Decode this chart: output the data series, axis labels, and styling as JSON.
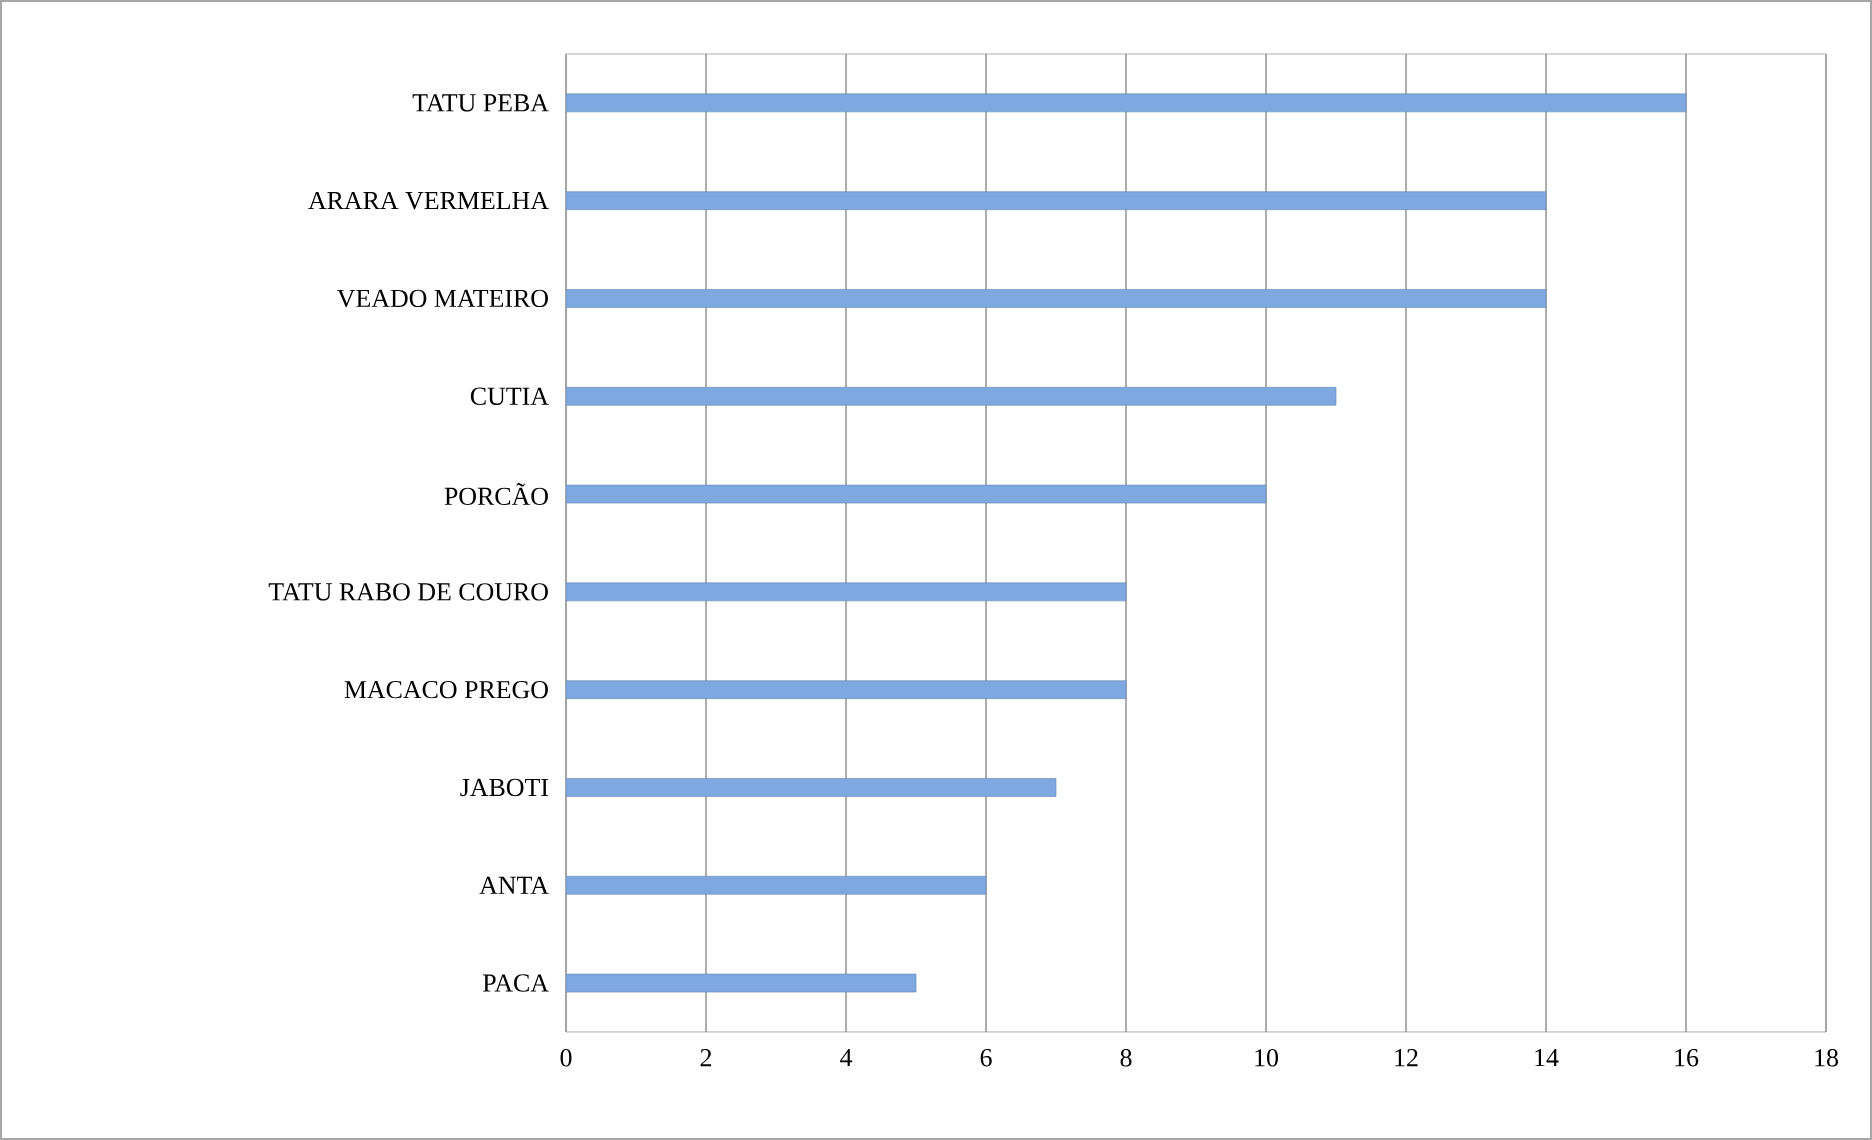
{
  "chart_data": {
    "type": "bar",
    "orientation": "horizontal",
    "categories": [
      "TATU PEBA",
      "ARARA VERMELHA",
      "VEADO MATEIRO",
      "CUTIA",
      "PORCÃO",
      "TATU RABO DE COURO",
      "MACACO PREGO",
      "JABOTI",
      "ANTA",
      "PACA"
    ],
    "values": [
      16,
      14,
      14,
      11,
      10,
      8,
      8,
      7,
      6,
      5
    ],
    "color": "#7ea8e0",
    "xlim": [
      0,
      18
    ],
    "xticks": [
      0,
      2,
      4,
      6,
      8,
      10,
      12,
      14,
      16,
      18
    ],
    "grid": "x"
  }
}
